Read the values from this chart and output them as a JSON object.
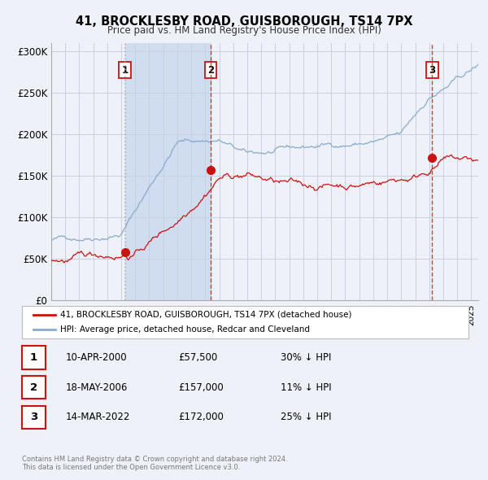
{
  "title": "41, BROCKLESBY ROAD, GUISBOROUGH, TS14 7PX",
  "subtitle": "Price paid vs. HM Land Registry's House Price Index (HPI)",
  "bg_color": "#eef2f8",
  "plot_bg_color": "#eef2f8",
  "grid_color": "#c8d0e0",
  "sale_dates": [
    2000.278,
    2006.38,
    2022.203
  ],
  "sale_prices": [
    57500,
    157000,
    172000
  ],
  "sale_labels": [
    "1",
    "2",
    "3"
  ],
  "legend_red": "41, BROCKLESBY ROAD, GUISBOROUGH, TS14 7PX (detached house)",
  "legend_blue": "HPI: Average price, detached house, Redcar and Cleveland",
  "table_entries": [
    {
      "num": "1",
      "date": "10-APR-2000",
      "price": "£57,500",
      "pct": "30% ↓ HPI"
    },
    {
      "num": "2",
      "date": "18-MAY-2006",
      "price": "£157,000",
      "pct": "11% ↓ HPI"
    },
    {
      "num": "3",
      "date": "14-MAR-2022",
      "price": "£172,000",
      "pct": "25% ↓ HPI"
    }
  ],
  "footer": "Contains HM Land Registry data © Crown copyright and database right 2024.\nThis data is licensed under the Open Government Licence v3.0.",
  "ylim": [
    0,
    310000
  ],
  "yticks": [
    0,
    50000,
    100000,
    150000,
    200000,
    250000,
    300000
  ],
  "ytick_labels": [
    "£0",
    "£50K",
    "£100K",
    "£150K",
    "£200K",
    "£250K",
    "£300K"
  ],
  "xmin": 1995.0,
  "xmax": 2025.5,
  "shade_region": [
    2000.278,
    2006.38
  ],
  "shade_color": "#d0dcf0",
  "hpi_color": "#88aacc",
  "red_color": "#cc1111",
  "dot_color": "#cc1111"
}
